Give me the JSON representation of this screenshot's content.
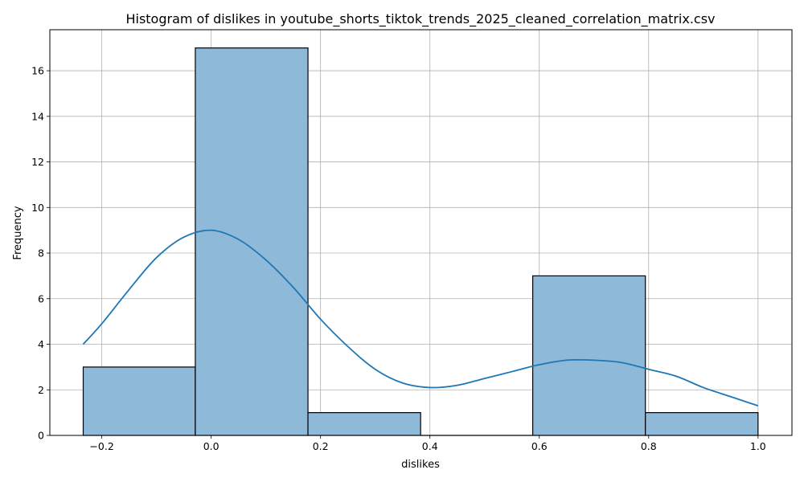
{
  "chart_data": {
    "type": "bar",
    "title": "Histogram of dislikes in youtube_shorts_tiktok_trends_2025_cleaned_correlation_matrix.csv",
    "xlabel": "dislikes",
    "ylabel": "Frequency",
    "xlim": [
      -0.295,
      1.062
    ],
    "ylim": [
      0,
      17.8
    ],
    "xticks": [
      -0.2,
      0.0,
      0.2,
      0.4,
      0.6,
      0.8,
      1.0
    ],
    "xtick_labels": [
      "−0.2",
      "0.0",
      "0.2",
      "0.4",
      "0.6",
      "0.8",
      "1.0"
    ],
    "yticks": [
      0,
      2,
      4,
      6,
      8,
      10,
      12,
      14,
      16
    ],
    "grid": true,
    "bins": [
      {
        "x0": -0.234,
        "x1": -0.029,
        "count": 3
      },
      {
        "x0": -0.029,
        "x1": 0.177,
        "count": 17
      },
      {
        "x0": 0.177,
        "x1": 0.383,
        "count": 1
      },
      {
        "x0": 0.383,
        "x1": 0.588,
        "count": 0
      },
      {
        "x0": 0.588,
        "x1": 0.794,
        "count": 7
      },
      {
        "x0": 0.794,
        "x1": 1.0,
        "count": 1
      }
    ],
    "kde": {
      "x": [
        -0.234,
        -0.2,
        -0.15,
        -0.1,
        -0.05,
        0.0,
        0.05,
        0.1,
        0.15,
        0.2,
        0.25,
        0.3,
        0.35,
        0.4,
        0.45,
        0.5,
        0.55,
        0.6,
        0.65,
        0.7,
        0.75,
        0.8,
        0.85,
        0.9,
        0.95,
        1.0
      ],
      "y": [
        4.0,
        4.9,
        6.4,
        7.8,
        8.7,
        9.0,
        8.6,
        7.7,
        6.5,
        5.1,
        3.9,
        2.9,
        2.3,
        2.1,
        2.2,
        2.5,
        2.8,
        3.1,
        3.3,
        3.3,
        3.2,
        2.9,
        2.6,
        2.1,
        1.7,
        1.3
      ]
    },
    "colors": {
      "bar_fill": "#8fb9d9",
      "bar_edge": "#000000",
      "kde_line": "#1f77b4",
      "grid": "#b0b0b0"
    }
  }
}
